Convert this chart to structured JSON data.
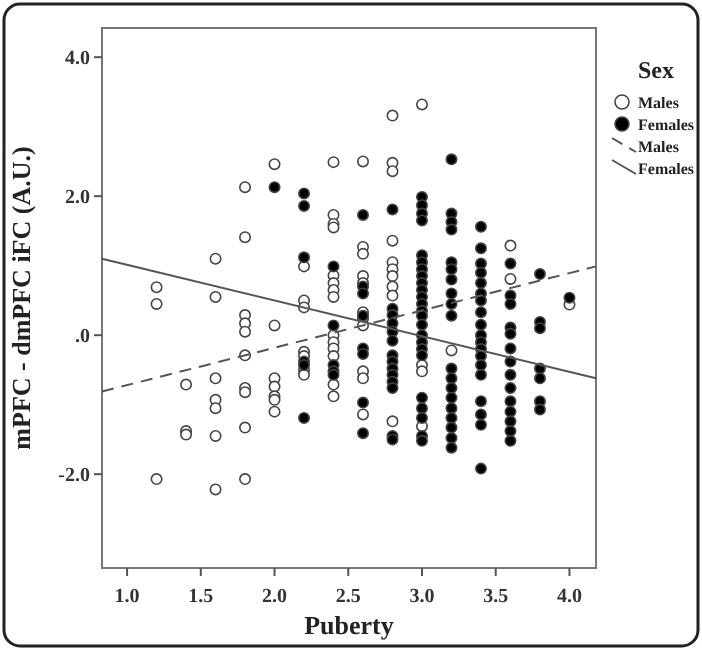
{
  "chart_data": {
    "type": "scatter",
    "xlabel": "Puberty",
    "ylabel": "mPFC - dmPFC iFC (A.U.)",
    "legend_title": "Sex",
    "legend": "right",
    "grid": false,
    "marker": "circle",
    "xlim": [
      0.83,
      4.18
    ],
    "ylim": [
      -3.35,
      4.42
    ],
    "xticks": [
      {
        "value": 1,
        "label": "1.0"
      },
      {
        "value": 1.5,
        "label": "1.5"
      },
      {
        "value": 2,
        "label": "2.0"
      },
      {
        "value": 2.5,
        "label": "2.5"
      },
      {
        "value": 3,
        "label": "3.0"
      },
      {
        "value": 3.5,
        "label": "3.5"
      },
      {
        "value": 4,
        "label": "4.0"
      }
    ],
    "yticks": [
      {
        "value": -2,
        "label": "-2.0"
      },
      {
        "value": 0,
        "label": ".0"
      },
      {
        "value": 2,
        "label": "2.0"
      },
      {
        "value": 4,
        "label": "4.0"
      }
    ],
    "series": [
      {
        "name": "Males",
        "color": "#ffffff",
        "x": [
          1.2,
          1.2,
          1.2,
          1.4,
          1.4,
          1.4,
          1.6,
          1.6,
          1.6,
          1.6,
          1.6,
          1.6,
          1.6,
          1.8,
          1.8,
          1.8,
          1.8,
          1.8,
          1.8,
          1.8,
          1.8,
          1.8,
          1.8,
          2.0,
          2.0,
          2.0,
          2.0,
          2.0,
          2.0,
          2.0,
          2.2,
          2.2,
          2.2,
          2.2,
          2.2,
          2.2,
          2.2,
          2.4,
          2.4,
          2.4,
          2.4,
          2.4,
          2.4,
          2.4,
          2.4,
          2.4,
          2.4,
          2.4,
          2.4,
          2.4,
          2.4,
          2.6,
          2.6,
          2.6,
          2.6,
          2.6,
          2.6,
          2.6,
          2.6,
          2.6,
          2.6,
          2.6,
          2.8,
          2.8,
          2.8,
          2.8,
          2.8,
          2.8,
          2.8,
          2.8,
          2.8,
          2.8,
          3.0,
          3.0,
          3.0,
          3.0,
          3.2,
          3.6,
          3.6,
          4.0
        ],
        "values": [
          0.69,
          0.45,
          -2.07,
          -0.71,
          -1.38,
          -1.43,
          1.1,
          0.55,
          -0.62,
          -0.93,
          -1.05,
          -1.45,
          -2.22,
          2.13,
          1.41,
          0.29,
          0.17,
          0.05,
          -0.29,
          -0.76,
          -0.82,
          -1.33,
          -2.07,
          2.46,
          0.14,
          -0.62,
          -0.74,
          -0.88,
          -0.93,
          -1.1,
          0.99,
          0.5,
          0.4,
          -0.24,
          -0.3,
          -0.5,
          -0.57,
          2.49,
          1.73,
          1.6,
          1.55,
          0.86,
          0.75,
          0.65,
          0.55,
          0,
          -0.1,
          -0.19,
          -0.3,
          -0.71,
          -0.88,
          2.5,
          1.27,
          1.17,
          0.85,
          0.75,
          0.33,
          0.24,
          0.14,
          -0.52,
          -0.62,
          -1.14,
          3.16,
          2.48,
          2.36,
          1.36,
          1.05,
          0.95,
          0.85,
          0.7,
          0.57,
          -1.24,
          3.32,
          -0.43,
          -0.52,
          -1.31,
          -0.22,
          1.29,
          0.81,
          0.44
        ]
      },
      {
        "name": "Females",
        "color": "#000000",
        "x": [
          2.0,
          2.2,
          2.2,
          2.2,
          2.2,
          2.2,
          2.2,
          2.4,
          2.4,
          2.4,
          2.4,
          2.4,
          2.6,
          2.6,
          2.6,
          2.6,
          2.6,
          2.6,
          2.6,
          2.6,
          2.8,
          2.8,
          2.8,
          2.8,
          2.8,
          2.8,
          2.8,
          2.8,
          2.8,
          2.8,
          2.8,
          2.8,
          2.8,
          2.8,
          3.0,
          3.0,
          3.0,
          3.0,
          3.0,
          3.0,
          3.0,
          3.0,
          3.0,
          3.0,
          3.0,
          3.0,
          3.0,
          3.0,
          3.0,
          3.0,
          3.0,
          3.0,
          3.0,
          3.0,
          3.0,
          3.0,
          3.0,
          3.0,
          3.2,
          3.2,
          3.2,
          3.2,
          3.2,
          3.2,
          3.2,
          3.2,
          3.2,
          3.2,
          3.2,
          3.2,
          3.2,
          3.2,
          3.2,
          3.2,
          3.2,
          3.2,
          3.2,
          3.4,
          3.4,
          3.4,
          3.4,
          3.4,
          3.4,
          3.4,
          3.4,
          3.4,
          3.4,
          3.4,
          3.4,
          3.4,
          3.4,
          3.4,
          3.4,
          3.4,
          3.4,
          3.4,
          3.6,
          3.6,
          3.6,
          3.6,
          3.6,
          3.6,
          3.6,
          3.6,
          3.6,
          3.6,
          3.6,
          3.6,
          3.6,
          3.6,
          3.8,
          3.8,
          3.8,
          3.8,
          3.8,
          3.8,
          3.8,
          4.0
        ],
        "values": [
          2.13,
          2.04,
          1.86,
          1.12,
          -0.38,
          -0.43,
          -1.19,
          0.99,
          0.14,
          -0.43,
          -0.52,
          -0.57,
          1.73,
          0.7,
          0.6,
          0.28,
          -0.19,
          -0.27,
          -0.97,
          -1.41,
          1.81,
          0.38,
          0.29,
          0.17,
          0.05,
          -0.08,
          -0.29,
          -0.38,
          -0.48,
          -0.57,
          -0.67,
          -0.76,
          -1.45,
          -1.5,
          1.99,
          1.87,
          1.75,
          1.65,
          1.15,
          1.05,
          0.95,
          0.85,
          0.75,
          0.65,
          0.55,
          0.45,
          0.35,
          0.28,
          0.15,
          0,
          -0.1,
          -0.2,
          -0.29,
          -0.9,
          -1.05,
          -1.19,
          -1.45,
          -1.52,
          2.53,
          1.75,
          1.63,
          1.52,
          1.05,
          0.95,
          0.8,
          0.6,
          0.45,
          0.28,
          -0.48,
          -0.62,
          -0.76,
          -0.9,
          -1.05,
          -1.19,
          -1.33,
          -1.48,
          -1.62,
          1.56,
          1.25,
          1.03,
          0.9,
          0.75,
          0.6,
          0.5,
          0.33,
          0.15,
          0,
          -0.1,
          -0.2,
          -0.3,
          -0.43,
          -0.57,
          -0.95,
          -1.14,
          -1.29,
          -1.92,
          1.03,
          0.57,
          0.45,
          0.11,
          0.02,
          -0.19,
          -0.38,
          -0.57,
          -0.76,
          -0.95,
          -1.1,
          -1.24,
          -1.38,
          -1.52,
          0.88,
          0.19,
          0.1,
          -0.48,
          -0.62,
          -0.95,
          -1.07,
          0.54
        ]
      },
      {
        "name": "Males",
        "type": "line",
        "marker": "none",
        "line_style": "dashed",
        "color": "#555555",
        "x": [
          0.83,
          4.18
        ],
        "values": [
          -0.81,
          0.99
        ]
      },
      {
        "name": "Females",
        "type": "line",
        "marker": "none",
        "line_style": "solid",
        "color": "#555555",
        "x": [
          0.83,
          4.18
        ],
        "values": [
          1.1,
          -0.62
        ]
      }
    ]
  }
}
